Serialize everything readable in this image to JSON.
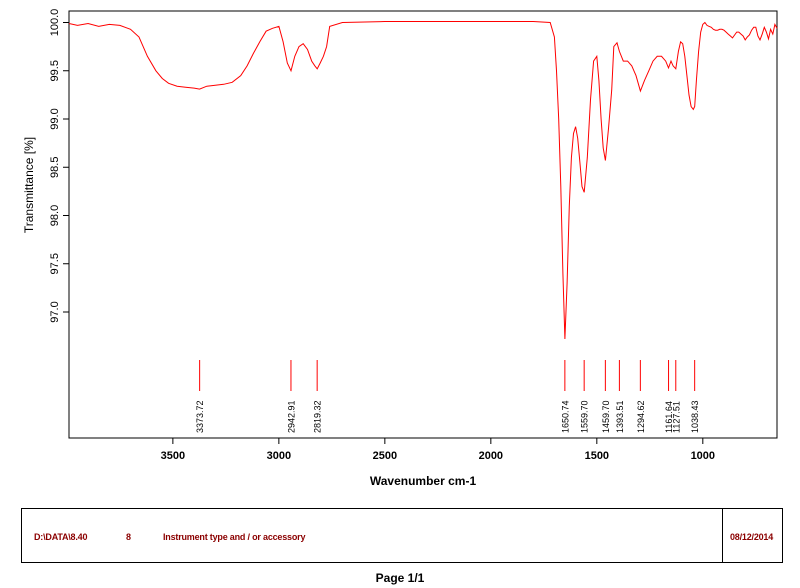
{
  "chart_data": {
    "type": "line",
    "xlabel": "Wavenumber cm-1",
    "ylabel": "Transmittance [%]",
    "xlim": [
      3990,
      650
    ],
    "ylim": [
      95.8,
      100.07
    ],
    "x_ticks": [
      3500,
      3000,
      2500,
      2000,
      1500,
      1000
    ],
    "y_ticks": [
      97.0,
      97.5,
      98.0,
      98.5,
      99.0,
      99.5,
      100.0
    ],
    "grid": false,
    "line_color": "#ff0000",
    "series": [
      {
        "x": [
          3990,
          3950,
          3900,
          3850,
          3800,
          3750,
          3700,
          3660,
          3620,
          3580,
          3550,
          3520,
          3480,
          3440,
          3400,
          3373.72,
          3340,
          3300,
          3260,
          3220,
          3180,
          3150,
          3120,
          3090,
          3060,
          3030,
          3000,
          2980,
          2960,
          2942.91,
          2925,
          2905,
          2885,
          2865,
          2845,
          2830,
          2819.32,
          2805,
          2790,
          2775,
          2760,
          2700,
          2500,
          2200,
          2000,
          1800,
          1720,
          1700,
          1690,
          1680,
          1670,
          1660,
          1650.74,
          1640,
          1630,
          1620,
          1610,
          1600,
          1590,
          1580,
          1570,
          1559.7,
          1545,
          1530,
          1515,
          1500,
          1490,
          1480,
          1470,
          1459.7,
          1445,
          1430,
          1420,
          1405,
          1393.51,
          1375,
          1355,
          1335,
          1315,
          1294.62,
          1275,
          1255,
          1235,
          1215,
          1195,
          1175,
          1161.64,
          1150,
          1140,
          1127.51,
          1115,
          1105,
          1095,
          1085,
          1075,
          1065,
          1055,
          1045,
          1038.43,
          1030,
          1020,
          1010,
          1000,
          990,
          980,
          970,
          960,
          950,
          940,
          930,
          920,
          910,
          900,
          890,
          880,
          870,
          860,
          850,
          840,
          830,
          820,
          810,
          800,
          790,
          780,
          770,
          760,
          750,
          740,
          730,
          720,
          710,
          700,
          690,
          680,
          670,
          660,
          650
        ],
        "y": [
          99.99,
          99.97,
          99.99,
          99.96,
          99.98,
          99.97,
          99.93,
          99.85,
          99.65,
          99.5,
          99.42,
          99.37,
          99.34,
          99.33,
          99.32,
          99.31,
          99.34,
          99.35,
          99.36,
          99.38,
          99.45,
          99.55,
          99.68,
          99.8,
          99.91,
          99.94,
          99.96,
          99.8,
          99.58,
          99.5,
          99.65,
          99.75,
          99.78,
          99.72,
          99.6,
          99.55,
          99.52,
          99.58,
          99.65,
          99.75,
          99.96,
          100.0,
          100.01,
          100.01,
          100.01,
          100.01,
          100.0,
          99.85,
          99.5,
          99.0,
          98.3,
          97.4,
          96.72,
          97.3,
          98.1,
          98.6,
          98.85,
          98.92,
          98.8,
          98.55,
          98.3,
          98.24,
          98.6,
          99.2,
          99.6,
          99.65,
          99.4,
          99.0,
          98.7,
          98.57,
          98.9,
          99.3,
          99.75,
          99.79,
          99.7,
          99.6,
          99.6,
          99.55,
          99.45,
          99.29,
          99.4,
          99.5,
          99.6,
          99.65,
          99.65,
          99.6,
          99.53,
          99.6,
          99.55,
          99.52,
          99.7,
          99.8,
          99.78,
          99.65,
          99.45,
          99.25,
          99.13,
          99.1,
          99.13,
          99.4,
          99.7,
          99.9,
          99.98,
          100.0,
          99.97,
          99.96,
          99.95,
          99.93,
          99.92,
          99.92,
          99.93,
          99.93,
          99.92,
          99.9,
          99.88,
          99.86,
          99.84,
          99.87,
          99.9,
          99.9,
          99.88,
          99.86,
          99.82,
          99.85,
          99.87,
          99.92,
          99.95,
          99.95,
          99.86,
          99.82,
          99.88,
          99.95,
          99.9,
          99.83,
          99.93,
          99.88,
          99.98,
          99.94
        ]
      }
    ],
    "peaks": [
      {
        "x": 3373.72,
        "label": "3373.72"
      },
      {
        "x": 2942.91,
        "label": "2942.91"
      },
      {
        "x": 2819.32,
        "label": "2819.32"
      },
      {
        "x": 1650.74,
        "label": "1650.74"
      },
      {
        "x": 1559.7,
        "label": "1559.70"
      },
      {
        "x": 1459.7,
        "label": "1459.70"
      },
      {
        "x": 1393.51,
        "label": "1393.51"
      },
      {
        "x": 1294.62,
        "label": "1294.62"
      },
      {
        "x": 1161.64,
        "label": "1161.64"
      },
      {
        "x": 1127.51,
        "label": "1127.51"
      },
      {
        "x": 1038.43,
        "label": "1038.43"
      }
    ]
  },
  "footer": {
    "path": "D:\\DATA\\8.40",
    "number": "8",
    "instrument": "Instrument type and / or accessory",
    "date": "08/12/2014"
  },
  "page_label": "Page 1/1"
}
